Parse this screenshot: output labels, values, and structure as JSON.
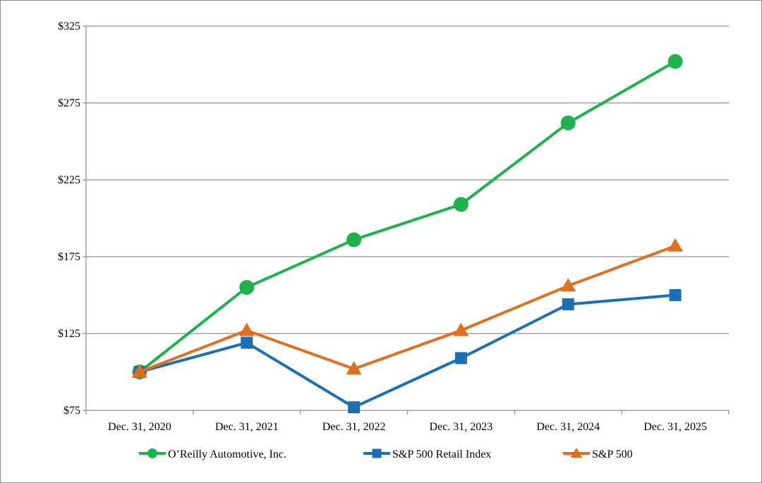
{
  "chart_data": {
    "type": "line",
    "title": "",
    "xlabel": "",
    "ylabel": "",
    "categories": [
      "Dec. 31, 2020",
      "Dec. 31, 2021",
      "Dec. 31, 2022",
      "Dec. 31, 2023",
      "Dec. 31, 2024",
      "Dec. 31, 2025"
    ],
    "ylim": [
      75,
      325
    ],
    "yticks": [
      75,
      125,
      175,
      225,
      275,
      325
    ],
    "ytick_labels": [
      "$75",
      "$125",
      "$175",
      "$225",
      "$275",
      "$325"
    ],
    "grid": "horizontal",
    "legend_position": "bottom",
    "series": [
      {
        "name": "O’Reilly Automotive, Inc.",
        "values": [
          100,
          155,
          186,
          209,
          262,
          302
        ],
        "color": "#1fb14c",
        "marker": "circle"
      },
      {
        "name": "S&P 500 Retail Index",
        "values": [
          100,
          119,
          77,
          109,
          144,
          150
        ],
        "color": "#1a6fb5",
        "marker": "square"
      },
      {
        "name": "S&P 500",
        "values": [
          100,
          127,
          102,
          127,
          156,
          182
        ],
        "color": "#e07020",
        "marker": "triangle"
      }
    ]
  }
}
